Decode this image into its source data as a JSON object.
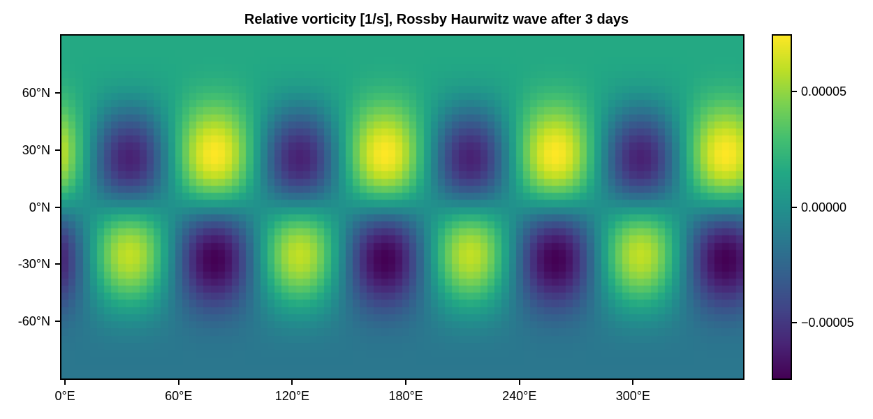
{
  "chart_data": {
    "type": "heatmap",
    "title": "Relative vorticity [1/s], Rossby Haurwitz wave after 3 days",
    "colormap": "viridis",
    "viridis_stops": [
      "#440154",
      "#482475",
      "#414487",
      "#355f8d",
      "#2a788e",
      "#21918c",
      "#22a884",
      "#44bf70",
      "#7ad151",
      "#bddf26",
      "#fde725"
    ],
    "grid": {
      "nlon": 96,
      "nlat": 48,
      "lon_edges_deg": [
        -1.875,
        358.125
      ],
      "lat_edges_deg": [
        -90,
        90
      ]
    },
    "field_formula": "zeta(lon,lat) = two_omega*sin(lat) + K_factor*sin(lat)*cos(lat)^cos_power*cos(R*(lon-lon0))",
    "field_params": {
      "two_omega": 1.57e-05,
      "K_factor": 0.0002354,
      "cos_power": 4,
      "zonal_wavenumber_R": 4,
      "phase_lon0_deg": 79
    },
    "value_range": {
      "vmin": -7.43e-05,
      "vmax": 7.43e-05
    },
    "x_axis": {
      "ticks": [
        {
          "value": 0,
          "label": "0°E"
        },
        {
          "value": 60,
          "label": "60°E"
        },
        {
          "value": 120,
          "label": "120°E"
        },
        {
          "value": 180,
          "label": "180°E"
        },
        {
          "value": 240,
          "label": "240°E"
        },
        {
          "value": 300,
          "label": "300°E"
        }
      ]
    },
    "y_axis": {
      "ticks": [
        {
          "value": 60,
          "label": "60°N"
        },
        {
          "value": 30,
          "label": "30°N"
        },
        {
          "value": 0,
          "label": "0°N"
        },
        {
          "value": -30,
          "label": "-30°N"
        },
        {
          "value": -60,
          "label": "-60°N"
        }
      ]
    },
    "colorbar": {
      "ticks": [
        {
          "value": 5e-05,
          "label": "0.00005"
        },
        {
          "value": 0,
          "label": "0.00000"
        },
        {
          "value": -5e-05,
          "label": "−0.00005"
        }
      ]
    }
  }
}
